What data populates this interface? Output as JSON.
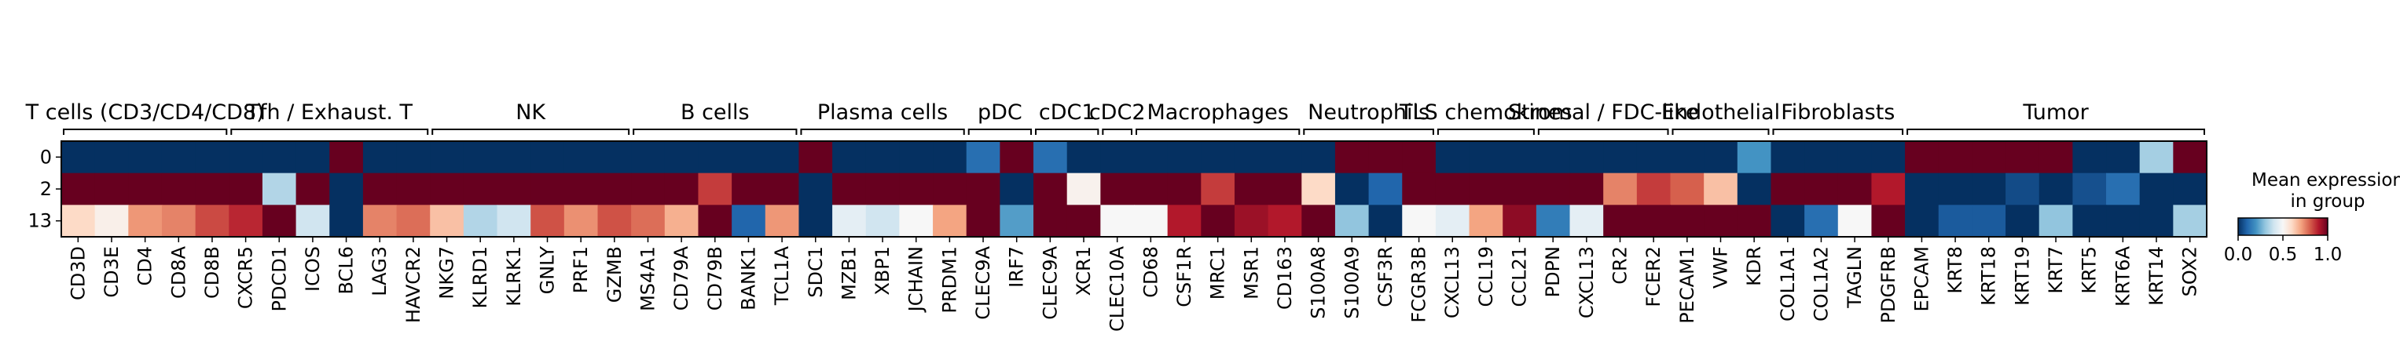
{
  "chart_data": {
    "type": "heatmap",
    "groups": [
      "0",
      "2",
      "13"
    ],
    "genes": [
      "CD3D",
      "CD3E",
      "CD4",
      "CD8A",
      "CD8B",
      "CXCR5",
      "PDCD1",
      "ICOS",
      "BCL6",
      "LAG3",
      "HAVCR2",
      "NKG7",
      "KLRD1",
      "KLRK1",
      "GNLY",
      "PRF1",
      "GZMB",
      "MS4A1",
      "CD79A",
      "CD79B",
      "BANK1",
      "TCL1A",
      "SDC1",
      "MZB1",
      "XBP1",
      "JCHAIN",
      "PRDM1",
      "CLEC9A",
      "IRF7",
      "CLEC9A",
      "XCR1",
      "CLEC10A",
      "CD68",
      "CSF1R",
      "MRC1",
      "MSR1",
      "CD163",
      "S100A8",
      "S100A9",
      "CSF3R",
      "FCGR3B",
      "CXCL13",
      "CCL19",
      "CCL21",
      "PDPN",
      "CXCL13",
      "CR2",
      "FCER2",
      "PECAM1",
      "VWF",
      "KDR",
      "COL1A1",
      "COL1A2",
      "TAGLN",
      "PDGFRB",
      "EPCAM",
      "KRT8",
      "KRT18",
      "KRT19",
      "KRT7",
      "KRT5",
      "KRT6A",
      "KRT14",
      "SOX2"
    ],
    "gene_groups": [
      {
        "label": "T cells (CD3/CD4/CD8)",
        "start": 0,
        "end": 4
      },
      {
        "label": "Tfh / Exhaust. T",
        "start": 5,
        "end": 10
      },
      {
        "label": "NK",
        "start": 11,
        "end": 16
      },
      {
        "label": "B cells",
        "start": 17,
        "end": 21
      },
      {
        "label": "Plasma cells",
        "start": 22,
        "end": 26
      },
      {
        "label": "pDC",
        "start": 27,
        "end": 28
      },
      {
        "label": "cDC1",
        "start": 29,
        "end": 30
      },
      {
        "label": "cDC2",
        "start": 31,
        "end": 31
      },
      {
        "label": "Macrophages",
        "start": 32,
        "end": 36
      },
      {
        "label": "Neutrophils",
        "start": 37,
        "end": 40
      },
      {
        "label": "TLS chemokines",
        "start": 41,
        "end": 43
      },
      {
        "label": "Stromal / FDC-like",
        "start": 44,
        "end": 47
      },
      {
        "label": "Endothelial",
        "start": 48,
        "end": 50
      },
      {
        "label": "Fibroblasts",
        "start": 51,
        "end": 54
      },
      {
        "label": "Tumor",
        "start": 55,
        "end": 63
      }
    ],
    "values": [
      [
        0.0,
        0.0,
        0.0,
        0.0,
        0.0,
        0.0,
        0.0,
        0.0,
        1.0,
        0.0,
        0.0,
        0.0,
        0.0,
        0.0,
        0.0,
        0.0,
        0.0,
        0.0,
        0.0,
        0.0,
        0.0,
        0.0,
        1.0,
        0.0,
        0.0,
        0.0,
        0.0,
        0.12,
        1.0,
        0.12,
        0.0,
        0.0,
        0.0,
        0.0,
        0.0,
        0.0,
        0.0,
        0.0,
        1.0,
        1.0,
        1.0,
        0.0,
        0.0,
        0.0,
        0.0,
        0.0,
        0.0,
        0.0,
        0.0,
        0.0,
        0.2,
        0.0,
        0.0,
        0.0,
        0.0,
        1.0,
        1.0,
        1.0,
        1.0,
        1.0,
        0.0,
        0.0,
        0.33,
        1.0
      ],
      [
        1.0,
        1.0,
        1.0,
        1.0,
        1.0,
        1.0,
        0.35,
        1.0,
        0.0,
        1.0,
        1.0,
        1.0,
        1.0,
        1.0,
        1.0,
        1.0,
        1.0,
        1.0,
        1.0,
        0.85,
        1.0,
        1.0,
        0.0,
        1.0,
        1.0,
        1.0,
        1.0,
        1.0,
        0.0,
        1.0,
        0.52,
        1.0,
        1.0,
        1.0,
        0.85,
        1.0,
        1.0,
        0.6,
        0.0,
        0.1,
        1.0,
        1.0,
        1.0,
        1.0,
        1.0,
        1.0,
        0.75,
        0.85,
        0.8,
        0.65,
        0.0,
        1.0,
        1.0,
        1.0,
        0.9,
        0.0,
        0.0,
        0.0,
        0.05,
        0.0,
        0.06,
        0.12,
        0.0,
        0.0
      ],
      [
        0.6,
        0.53,
        0.72,
        0.75,
        0.83,
        0.88,
        1.0,
        0.4,
        0.0,
        0.75,
        0.78,
        0.65,
        0.35,
        0.4,
        0.82,
        0.73,
        0.82,
        0.78,
        0.68,
        1.0,
        0.1,
        0.72,
        0.0,
        0.45,
        0.4,
        0.5,
        0.7,
        1.0,
        0.22,
        1.0,
        1.0,
        0.5,
        0.5,
        0.9,
        1.0,
        0.93,
        0.9,
        1.0,
        0.3,
        0.0,
        0.5,
        0.45,
        0.7,
        0.95,
        0.15,
        0.45,
        1.0,
        1.0,
        1.0,
        1.0,
        1.0,
        0.0,
        0.12,
        0.5,
        1.0,
        0.0,
        0.08,
        0.08,
        0.0,
        0.3,
        0.0,
        0.0,
        0.0,
        0.33
      ]
    ],
    "colorbar": {
      "title_line1": "Mean expression",
      "title_line2": "in group",
      "ticks": [
        "0.0",
        "0.5",
        "1.0"
      ],
      "range": [
        0,
        1
      ],
      "colormap": "RdBu_r"
    },
    "colors": {
      "low": "#053061",
      "mid": "#f7f7f7",
      "high": "#67001f"
    },
    "grid": false
  }
}
